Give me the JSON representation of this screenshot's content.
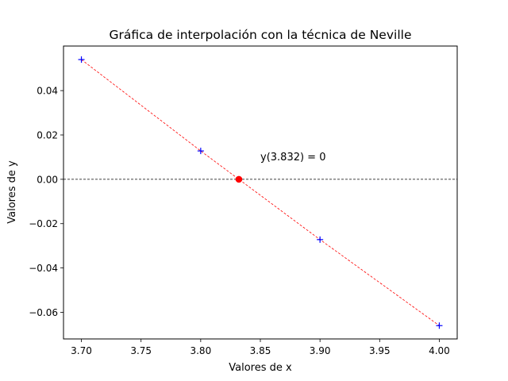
{
  "chart_data": {
    "type": "line",
    "title": "Gráfica de interpolación con la técnica de Neville",
    "xlabel": "Valores de x",
    "ylabel": "Valores de y",
    "xlim": [
      3.685,
      4.015
    ],
    "ylim": [
      -0.072,
      0.0601
    ],
    "xticks": [
      3.7,
      3.75,
      3.8,
      3.85,
      3.9,
      3.95,
      4.0
    ],
    "xtick_labels": [
      "3.70",
      "3.75",
      "3.80",
      "3.85",
      "3.90",
      "3.95",
      "4.00"
    ],
    "yticks": [
      0.04,
      0.02,
      0.0,
      -0.02,
      -0.04,
      -0.06
    ],
    "ytick_labels": [
      "0.04",
      "0.02",
      "0.00",
      "−0.02",
      "−0.04",
      "−0.06"
    ],
    "grid": false,
    "series": [
      {
        "kind": "markers",
        "marker": "plus",
        "color": "#0000ff",
        "x": [
          3.7,
          3.8,
          3.9,
          4.0
        ],
        "y": [
          0.054,
          0.0128,
          -0.0272,
          -0.066
        ]
      },
      {
        "kind": "line",
        "style": "dashed",
        "color": "#ff0000",
        "x": [
          3.7,
          3.8,
          3.9,
          4.0
        ],
        "y": [
          0.054,
          0.0128,
          -0.0272,
          -0.066
        ]
      },
      {
        "kind": "point",
        "marker": "circle",
        "color": "#ff0000",
        "x": [
          3.832
        ],
        "y": [
          0.0
        ]
      }
    ],
    "hline": {
      "y": 0.0,
      "style": "dashed",
      "color": "#000000"
    },
    "annotation": {
      "text": "y(3.832) = 0",
      "x": 3.85,
      "y": 0.0104
    }
  }
}
